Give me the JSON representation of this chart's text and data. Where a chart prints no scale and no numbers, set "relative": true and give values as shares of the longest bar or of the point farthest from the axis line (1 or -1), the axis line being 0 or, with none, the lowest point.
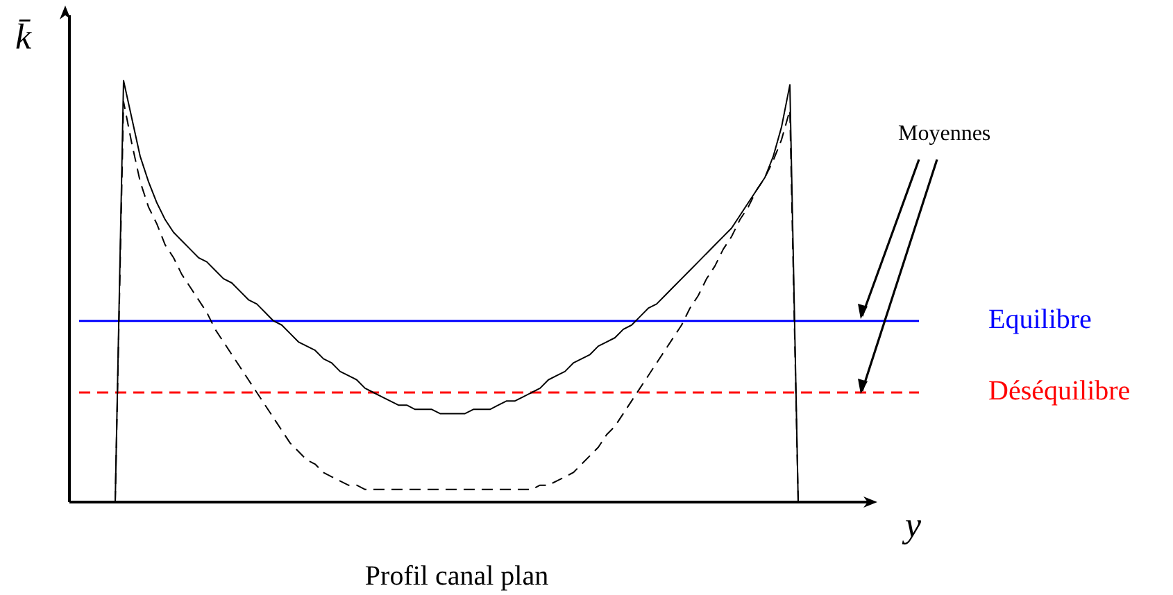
{
  "chart_data": {
    "type": "line",
    "title": "Profil canal plan",
    "xlabel": "y",
    "ylabel": "k̄",
    "relative": true,
    "legend": false,
    "grid": false,
    "marker": "none",
    "categories": [
      null,
      null,
      null,
      null,
      null,
      null,
      null,
      null,
      null,
      null,
      null,
      null,
      null,
      null,
      null,
      null,
      null,
      null,
      null,
      null,
      null,
      null,
      null,
      null,
      null,
      null,
      null,
      null,
      null,
      null,
      null,
      null,
      null,
      null,
      null,
      null,
      null,
      null,
      null,
      null,
      null,
      null,
      null,
      null,
      null,
      null,
      null,
      null,
      null,
      null,
      null,
      null,
      null,
      null,
      null,
      null,
      null,
      null,
      null,
      null,
      null,
      null,
      null,
      null,
      null,
      null,
      null,
      null,
      null,
      null,
      null,
      null,
      null,
      null,
      null,
      null,
      null,
      null,
      null,
      null,
      null,
      null,
      null,
      null,
      null,
      null,
      null,
      null,
      null,
      null,
      null,
      null,
      null,
      null,
      null,
      null,
      null,
      null,
      null,
      null,
      null,
      null
    ],
    "series": [
      {
        "color": "#000000",
        "line_style": "solid",
        "values": [
          null,
          null,
          null,
          null,
          null,
          0,
          1,
          0.91,
          0.82,
          0.76,
          0.71,
          0.67,
          0.64,
          0.62,
          0.6,
          0.58,
          0.57,
          0.55,
          0.53,
          0.52,
          0.5,
          0.48,
          0.47,
          0.45,
          0.43,
          0.42,
          0.4,
          0.38,
          0.37,
          0.36,
          0.34,
          0.33,
          0.31,
          0.3,
          0.29,
          0.27,
          0.26,
          0.25,
          0.24,
          0.23,
          0.23,
          0.22,
          0.22,
          0.22,
          0.21,
          0.21,
          0.21,
          0.21,
          0.22,
          0.22,
          0.22,
          0.23,
          0.24,
          0.24,
          0.25,
          0.26,
          0.27,
          0.29,
          0.3,
          0.31,
          0.33,
          0.34,
          0.35,
          0.37,
          0.38,
          0.39,
          0.41,
          0.42,
          0.44,
          0.46,
          0.47,
          0.49,
          0.51,
          0.53,
          0.55,
          0.57,
          0.59,
          0.61,
          0.63,
          0.65,
          0.68,
          0.71,
          0.74,
          0.77,
          0.82,
          0.89,
          0.99,
          0,
          null,
          null,
          null,
          null,
          null,
          null,
          null,
          null,
          null,
          null,
          null,
          null,
          null,
          null
        ]
      },
      {
        "color": "#000000",
        "line_style": "dashed",
        "values": [
          null,
          null,
          null,
          null,
          null,
          0,
          0.95,
          0.85,
          0.76,
          0.7,
          0.66,
          0.61,
          0.58,
          0.54,
          0.51,
          0.48,
          0.45,
          0.41,
          0.38,
          0.35,
          0.32,
          0.29,
          0.26,
          0.23,
          0.2,
          0.17,
          0.14,
          0.12,
          0.1,
          0.09,
          0.07,
          0.06,
          0.05,
          0.04,
          0.04,
          0.03,
          0.03,
          0.03,
          0.03,
          0.03,
          0.03,
          0.03,
          0.03,
          0.03,
          0.03,
          0.03,
          0.03,
          0.03,
          0.03,
          0.03,
          0.03,
          0.03,
          0.03,
          0.03,
          0.03,
          0.03,
          0.04,
          0.04,
          0.05,
          0.06,
          0.07,
          0.09,
          0.11,
          0.13,
          0.16,
          0.18,
          0.21,
          0.24,
          0.27,
          0.3,
          0.33,
          0.36,
          0.39,
          0.42,
          0.46,
          0.49,
          0.53,
          0.56,
          0.6,
          0.63,
          0.67,
          0.7,
          0.74,
          0.77,
          0.81,
          0.86,
          0.93,
          0,
          null,
          null,
          null,
          null,
          null,
          null,
          null,
          null,
          null,
          null,
          null,
          null,
          null,
          null
        ]
      }
    ],
    "ref_lines": [
      {
        "axis": "y",
        "value": 0.43,
        "label": "Equilibre",
        "color": "#0000ff",
        "line_style": "solid"
      },
      {
        "axis": "y",
        "value": 0.26,
        "label": "Déséquilibre",
        "color": "#ff0000",
        "line_style": "dashed"
      }
    ],
    "annotations": [
      "Moyennes"
    ]
  }
}
